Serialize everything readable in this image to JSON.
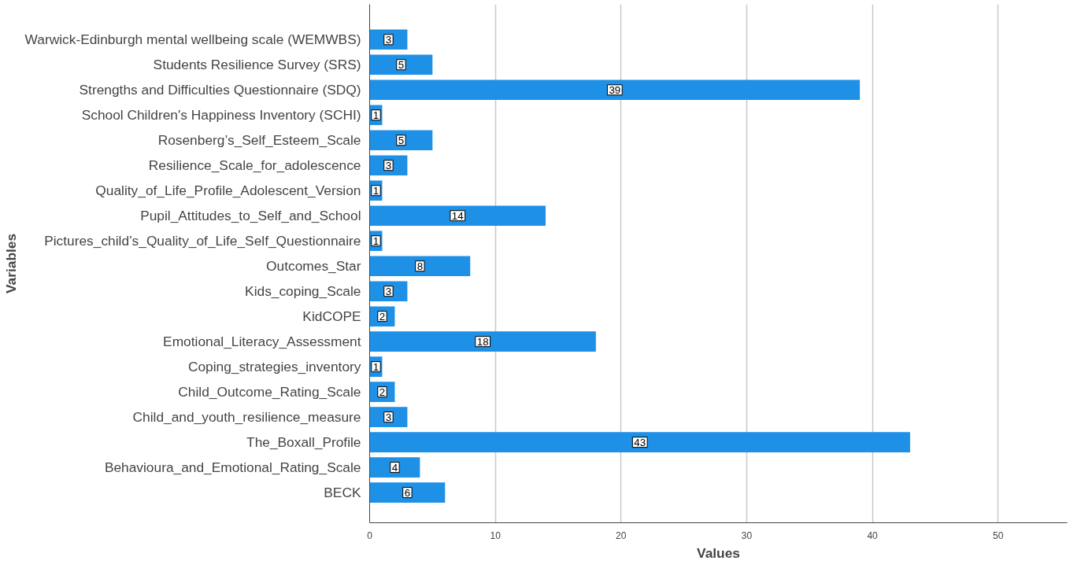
{
  "chart_data": {
    "type": "bar",
    "orientation": "horizontal",
    "xlabel": "Values",
    "ylabel": "Variables",
    "categories": [
      "Warwick-Edinburgh mental wellbeing scale (WEMWBS)",
      "Students Resilience Survey (SRS)",
      "Strengths and Difficulties Questionnaire (SDQ)",
      "School Children's Happiness Inventory (SCHI)",
      "Rosenberg’s_Self_Esteem_Scale",
      "Resilience_Scale_for_adolescence",
      "Quality_of_Life_Profile_Adolescent_Version",
      "Pupil_Attitudes_to_Self_and_School",
      "Pictures_child’s_Quality_of_Life_Self_Questionnaire",
      "Outcomes_Star",
      "Kids_coping_Scale",
      "KidCOPE",
      "Emotional_Literacy_Assessment",
      "Coping_strategies_inventory",
      "Child_Outcome_Rating_Scale",
      "Child_and_youth_resilience_measure",
      "The_Boxall_Profile",
      "Behavioura_and_Emotional_Rating_Scale",
      "BECK"
    ],
    "values": [
      3,
      5,
      39,
      1,
      5,
      3,
      1,
      14,
      1,
      8,
      3,
      2,
      18,
      1,
      2,
      3,
      43,
      4,
      6
    ],
    "color": "#1e90e6",
    "data_labels": true,
    "xlim": [
      0,
      55.5
    ],
    "xticks": [
      0,
      10,
      20,
      30,
      40,
      50
    ],
    "grid": "x"
  }
}
